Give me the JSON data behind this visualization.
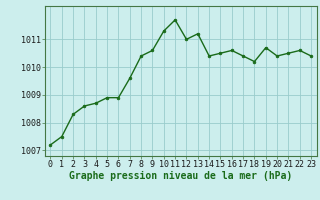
{
  "x": [
    0,
    1,
    2,
    3,
    4,
    5,
    6,
    7,
    8,
    9,
    10,
    11,
    12,
    13,
    14,
    15,
    16,
    17,
    18,
    19,
    20,
    21,
    22,
    23
  ],
  "y": [
    1007.2,
    1007.5,
    1008.3,
    1008.6,
    1008.7,
    1008.9,
    1008.9,
    1009.6,
    1010.4,
    1010.6,
    1011.3,
    1011.7,
    1011.0,
    1011.2,
    1010.4,
    1010.5,
    1010.6,
    1010.4,
    1010.2,
    1010.7,
    1010.4,
    1010.5,
    1010.6,
    1010.4
  ],
  "ylim": [
    1006.8,
    1012.2
  ],
  "yticks": [
    1007,
    1008,
    1009,
    1010,
    1011
  ],
  "xticks": [
    0,
    1,
    2,
    3,
    4,
    5,
    6,
    7,
    8,
    9,
    10,
    11,
    12,
    13,
    14,
    15,
    16,
    17,
    18,
    19,
    20,
    21,
    22,
    23
  ],
  "line_color": "#1a6b1a",
  "marker_color": "#1a6b1a",
  "bg_color": "#cceeed",
  "grid_color": "#99cccc",
  "xlabel": "Graphe pression niveau de la mer (hPa)",
  "xlabel_fontsize": 7,
  "tick_fontsize": 6,
  "line_width": 1.0,
  "marker_size": 2.0
}
